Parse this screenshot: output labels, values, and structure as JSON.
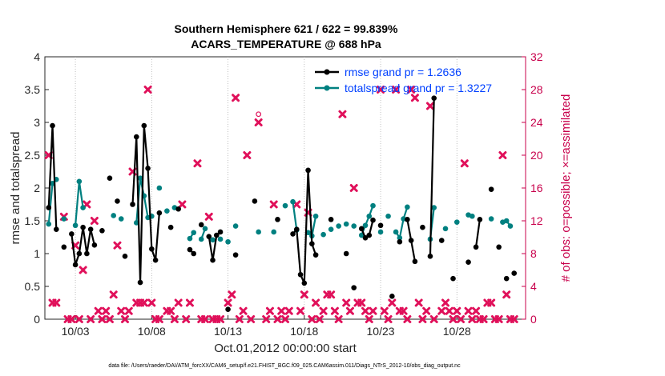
{
  "chart_data": {
    "type": "line",
    "title": "Southern Hemisphere 621 / 622 = 99.839%",
    "subtitle": "ACARS_TEMPERATURE @ 688 hPa",
    "xlabel": "Oct.01,2012 00:00:00 start",
    "ylabel": "rmse and totalspread",
    "y2label": "# of obs: o=possible; ×=assimilated",
    "footnote": "data file: /Users/raeder/DAI/ATM_forcXX/CAM6_setup/f.e21.FHIST_BGC.f09_025.CAM6assim.011/Diags_NTrS_2012-10/obs_diag_output.nc",
    "xlim": [
      1,
      32.5
    ],
    "ylim": [
      0,
      4
    ],
    "y2lim": [
      0,
      32
    ],
    "x_ticks": [
      3,
      8,
      13,
      18,
      23,
      28
    ],
    "x_tick_labels": [
      "10/03",
      "10/08",
      "10/13",
      "10/18",
      "10/23",
      "10/28"
    ],
    "y_ticks": [
      0,
      0.5,
      1,
      1.5,
      2,
      2.5,
      3,
      3.5,
      4
    ],
    "y_tick_labels": [
      "0",
      "0.5",
      "1",
      "1.5",
      "2",
      "2.5",
      "3",
      "3.5",
      "4"
    ],
    "y2_ticks": [
      0,
      4,
      8,
      12,
      16,
      20,
      24,
      28,
      32
    ],
    "y2_tick_labels": [
      "0",
      "4",
      "8",
      "12",
      "16",
      "20",
      "24",
      "28",
      "32"
    ],
    "grid": "vertical dotted",
    "legend_position": "top-right",
    "colors": {
      "rmse": "#000000",
      "totalspread": "#008080",
      "obs": "#e0105a",
      "legend_text": "#0040ff",
      "right_axis": "#c8004b"
    },
    "series": [
      {
        "name": "rmse grand pr = 1.2636",
        "axis": "left",
        "x": [
          1.25,
          1.5,
          1.75,
          2.25,
          2.75,
          3,
          3.25,
          3.5,
          3.75,
          4,
          4.25,
          4.75,
          5.25,
          5.75,
          6.25,
          6.75,
          7,
          7.25,
          7.5,
          7.75,
          8,
          8.25,
          8.5,
          9.25,
          9.75,
          10.5,
          10.75,
          11.25,
          11.75,
          12,
          12.25,
          12.5,
          13,
          13.5,
          14.75,
          16.25,
          17.25,
          17.5,
          17.75,
          18,
          18.25,
          18.5,
          18.75,
          19.75,
          20.75,
          21.25,
          21.75,
          22,
          22.25,
          22.5,
          23,
          23.75,
          24.25,
          24.75,
          25,
          25.25,
          25.75,
          26.25,
          26.5,
          27,
          27.75,
          28.75,
          29.25,
          29.5,
          30.25,
          30.75,
          31.25,
          31.75
        ],
        "y": [
          1.7,
          2.95,
          1.37,
          1.1,
          1.3,
          0.83,
          1.0,
          1.4,
          1.0,
          1.37,
          1.13,
          1.35,
          2.15,
          1.8,
          0.96,
          1.75,
          2.78,
          0.56,
          2.95,
          2.3,
          1.07,
          0.9,
          1.62,
          1.4,
          1.68,
          1.06,
          1.0,
          1.44,
          1.26,
          0.9,
          1.28,
          1.33,
          0.15,
          0.98,
          1.8,
          1.52,
          1.3,
          1.37,
          0.68,
          0.55,
          2.27,
          1.15,
          0.98,
          1.52,
          1.0,
          0.48,
          1.38,
          1.24,
          1.28,
          1.51,
          1.43,
          0.35,
          1.18,
          1.52,
          1.2,
          0.88,
          1.4,
          0.96,
          3.37,
          1.2,
          0.62,
          0.87,
          1.1,
          1.52,
          1.98,
          1.1,
          0.62,
          0.7
        ]
      },
      {
        "name": "totalspread grand pr = 1.3227",
        "axis": "left",
        "x": [
          1.25,
          1.5,
          1.75,
          2.25,
          3,
          3.25,
          3.5,
          5.5,
          6,
          7,
          7.25,
          7.5,
          7.75,
          8,
          8.5,
          9,
          9.5,
          10.5,
          10.75,
          11.25,
          11.5,
          12,
          12.5,
          13,
          13.5,
          15,
          16,
          16.75,
          17.25,
          17.5,
          18.25,
          18.5,
          18.75,
          19.25,
          19.75,
          20.25,
          20.75,
          21.25,
          21.75,
          22,
          22.25,
          22.5,
          23,
          23.5,
          24,
          24.25,
          24.5,
          24.75,
          26.25,
          26.5,
          27.25,
          28,
          28.75,
          29,
          30.25,
          31,
          31.25,
          31.5
        ],
        "y": [
          1.45,
          2.07,
          2.13,
          1.53,
          1.43,
          2.1,
          1.7,
          1.58,
          1.53,
          1.47,
          2.15,
          1.88,
          1.55,
          1.57,
          2.0,
          1.65,
          1.7,
          1.23,
          1.32,
          1.22,
          1.38,
          1.21,
          1.22,
          1.18,
          1.42,
          1.33,
          1.33,
          1.73,
          1.79,
          1.36,
          1.32,
          1.27,
          1.57,
          1.29,
          1.37,
          1.42,
          1.45,
          1.42,
          1.28,
          1.43,
          1.57,
          1.73,
          1.33,
          1.57,
          1.33,
          1.24,
          1.53,
          1.71,
          1.22,
          1.7,
          1.38,
          1.48,
          1.59,
          1.57,
          1.53,
          1.48,
          1.5,
          1.42
        ]
      },
      {
        "name": "obs possible",
        "axis": "right",
        "marker": "o",
        "x": [
          15
        ],
        "y": [
          25
        ]
      },
      {
        "name": "obs assimilated",
        "axis": "right",
        "marker": "x",
        "x": [
          1.25,
          1.5,
          1.75,
          2.25,
          2.5,
          2.75,
          3,
          3.25,
          3.5,
          3.75,
          4,
          4.25,
          4.5,
          4.75,
          5,
          5.25,
          5.5,
          5.75,
          6,
          6.25,
          6.5,
          6.75,
          7,
          7.25,
          7.5,
          7.75,
          8,
          8.25,
          8.5,
          9,
          9.25,
          9.5,
          9.75,
          10,
          10.25,
          10.5,
          11,
          11.25,
          11.5,
          11.75,
          12,
          12.25,
          12.5,
          13,
          13.25,
          13.5,
          13.75,
          14,
          14.25,
          14.5,
          15,
          15.5,
          15.75,
          16,
          16.25,
          16.5,
          16.75,
          17,
          17.5,
          17.75,
          18,
          18.25,
          18.5,
          18.75,
          19,
          19.25,
          19.5,
          19.75,
          20,
          20.25,
          20.5,
          20.75,
          21,
          21.25,
          21.5,
          21.75,
          22,
          22.25,
          22.5,
          23,
          23.25,
          23.5,
          23.75,
          24,
          24.25,
          24.5,
          24.75,
          25,
          25.25,
          25.5,
          25.75,
          26,
          26.25,
          26.5,
          27,
          27.25,
          27.5,
          27.75,
          28,
          28.25,
          28.5,
          28.75,
          29,
          29.25,
          29.5,
          29.75,
          30,
          30.25,
          30.5,
          30.75,
          31,
          31.25,
          31.5,
          31.75
        ],
        "y": [
          20,
          2,
          2,
          12.5,
          0,
          0,
          9,
          0,
          6,
          14,
          0,
          12,
          1,
          0,
          1,
          0,
          3,
          9,
          1,
          0,
          1,
          18,
          2,
          2,
          2,
          28,
          2,
          0,
          0,
          1,
          1,
          0,
          2,
          14,
          0,
          2,
          19,
          0,
          0,
          12.5,
          0,
          0,
          0,
          2,
          3,
          27,
          0,
          1,
          20,
          0,
          24,
          0,
          1,
          14,
          0,
          1,
          0,
          1,
          14,
          1,
          3,
          13,
          0,
          2,
          0,
          1,
          3,
          3,
          1,
          0,
          25,
          2,
          1,
          16,
          2,
          2,
          1,
          0,
          1,
          28,
          1,
          0,
          2,
          28,
          1,
          1,
          0,
          28,
          27,
          2,
          0,
          1,
          26,
          0,
          1,
          2,
          1,
          0,
          1,
          0,
          19,
          1,
          0,
          1,
          0,
          0,
          2,
          2,
          0,
          0,
          20,
          3,
          0,
          0
        ]
      }
    ]
  }
}
